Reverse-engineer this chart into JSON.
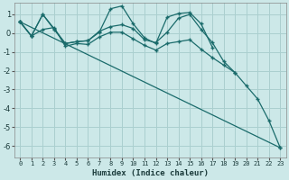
{
  "xlabel": "Humidex (Indice chaleur)",
  "bg_color": "#cce8e8",
  "grid_color": "#aacfcf",
  "line_color": "#1a6b6b",
  "xlim": [
    -0.5,
    23.5
  ],
  "ylim": [
    -6.6,
    1.6
  ],
  "yticks": [
    1,
    0,
    -1,
    -2,
    -3,
    -4,
    -5,
    -6
  ],
  "xticks": [
    0,
    1,
    2,
    3,
    4,
    5,
    6,
    7,
    8,
    9,
    10,
    11,
    12,
    13,
    14,
    15,
    16,
    17,
    18,
    19,
    20,
    21,
    22,
    23
  ],
  "series": [
    [
      0.6,
      -0.15,
      1.0,
      0.2,
      -0.55,
      -0.45,
      -0.4,
      0.05,
      1.3,
      1.45,
      0.5,
      -0.25,
      -0.55,
      0.85,
      1.05,
      1.1,
      0.5,
      -0.75,
      null,
      null,
      null,
      null,
      null,
      null
    ],
    [
      0.6,
      -0.15,
      1.0,
      0.25,
      -0.55,
      -0.45,
      -0.4,
      0.1,
      0.35,
      0.45,
      0.25,
      -0.35,
      -0.5,
      0.05,
      0.8,
      1.0,
      0.2,
      -0.5,
      -1.5,
      -2.1,
      null,
      null,
      null,
      null
    ],
    [
      0.6,
      -0.15,
      0.2,
      0.3,
      -0.7,
      -0.55,
      -0.6,
      -0.2,
      0.05,
      0.05,
      -0.3,
      -0.65,
      -0.9,
      -0.55,
      -0.45,
      -0.35,
      -0.85,
      -1.3,
      -1.7,
      -2.1,
      -2.8,
      -3.5,
      -4.65,
      -6.1
    ],
    [
      0.6,
      null,
      null,
      null,
      null,
      null,
      null,
      null,
      null,
      null,
      null,
      null,
      null,
      null,
      null,
      null,
      null,
      null,
      null,
      null,
      null,
      null,
      null,
      -6.1
    ]
  ]
}
